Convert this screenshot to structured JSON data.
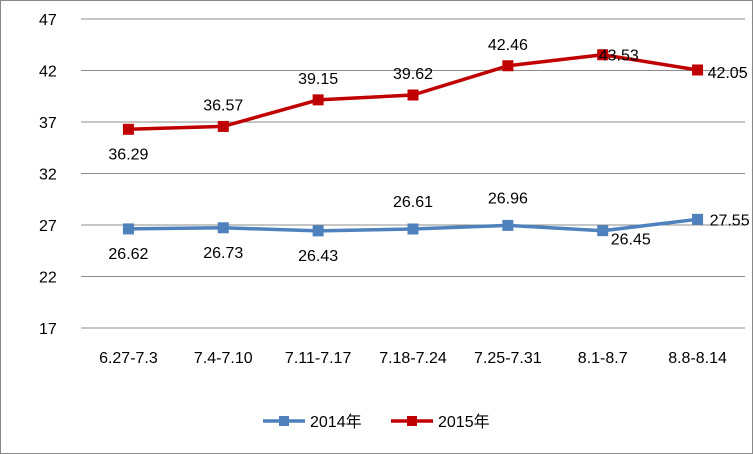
{
  "chart_data": {
    "type": "line",
    "categories": [
      "6.27-7.3",
      "7.4-7.10",
      "7.11-7.17",
      "7.18-7.24",
      "7.25-7.31",
      "8.1-8.7",
      "8.8-8.14"
    ],
    "ylim": [
      17,
      47
    ],
    "yticks": [
      17,
      22,
      27,
      32,
      37,
      42,
      47
    ],
    "ytick_labels": [
      "17",
      "22",
      "27",
      "32",
      "37",
      "42",
      "47"
    ],
    "grid": true,
    "legend_position": "bottom",
    "series": [
      {
        "name": "2014年",
        "color": "#4F81BD",
        "marker": "square",
        "values": [
          26.62,
          26.73,
          26.43,
          26.61,
          26.96,
          26.45,
          27.55
        ],
        "labels": [
          "26.62",
          "26.73",
          "26.43",
          "26.61",
          "26.96",
          "26.45",
          "27.55"
        ]
      },
      {
        "name": "2015年",
        "color": "#C00000",
        "marker": "square",
        "values": [
          36.29,
          36.57,
          39.15,
          39.62,
          42.46,
          43.53,
          42.05
        ],
        "labels": [
          "36.29",
          "36.57",
          "39.15",
          "39.62",
          "42.46",
          "43.53",
          "42.05"
        ]
      }
    ]
  }
}
